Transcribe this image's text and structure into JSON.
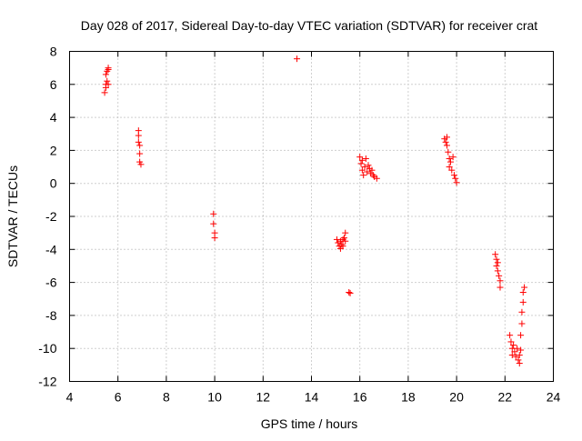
{
  "chart_data": {
    "type": "scatter",
    "title": "Day 028 of 2017, Sidereal Day-to-day VTEC variation (SDTVAR) for receiver crat",
    "xlabel": "GPS time / hours",
    "ylabel": "SDTVAR / TECUs",
    "xlim": [
      4,
      24
    ],
    "ylim": [
      -12,
      8
    ],
    "x_ticks": [
      4,
      6,
      8,
      10,
      12,
      14,
      16,
      18,
      20,
      22,
      24
    ],
    "y_ticks": [
      -12,
      -10,
      -8,
      -6,
      -4,
      -2,
      0,
      2,
      4,
      6,
      8
    ],
    "grid": true,
    "marker": "+",
    "color": "#ff0000",
    "series": [
      {
        "name": "SDTVAR",
        "points": [
          [
            5.45,
            5.5
          ],
          [
            5.5,
            5.8
          ],
          [
            5.5,
            6.0
          ],
          [
            5.55,
            6.2
          ],
          [
            5.6,
            6.0
          ],
          [
            5.5,
            6.6
          ],
          [
            5.55,
            6.8
          ],
          [
            5.6,
            6.9
          ],
          [
            5.6,
            7.0
          ],
          [
            6.85,
            3.2
          ],
          [
            6.85,
            2.9
          ],
          [
            6.85,
            2.5
          ],
          [
            6.9,
            2.3
          ],
          [
            6.9,
            1.8
          ],
          [
            6.9,
            1.3
          ],
          [
            6.95,
            1.15
          ],
          [
            9.95,
            -1.85
          ],
          [
            9.95,
            -2.45
          ],
          [
            10.0,
            -3.0
          ],
          [
            10.0,
            -3.3
          ],
          [
            13.4,
            7.55
          ],
          [
            15.05,
            -3.4
          ],
          [
            15.1,
            -3.6
          ],
          [
            15.15,
            -3.8
          ],
          [
            15.2,
            -3.95
          ],
          [
            15.2,
            -3.5
          ],
          [
            15.25,
            -3.7
          ],
          [
            15.3,
            -3.4
          ],
          [
            15.3,
            -3.8
          ],
          [
            15.35,
            -3.3
          ],
          [
            15.4,
            -3.0
          ],
          [
            15.4,
            -3.5
          ],
          [
            15.55,
            -6.6
          ],
          [
            15.6,
            -6.65
          ],
          [
            16.0,
            1.6
          ],
          [
            16.05,
            1.2
          ],
          [
            16.1,
            0.8
          ],
          [
            16.1,
            1.4
          ],
          [
            16.15,
            0.5
          ],
          [
            16.2,
            1.0
          ],
          [
            16.25,
            1.5
          ],
          [
            16.3,
            0.7
          ],
          [
            16.35,
            1.1
          ],
          [
            16.4,
            0.9
          ],
          [
            16.45,
            0.6
          ],
          [
            16.5,
            0.8
          ],
          [
            16.55,
            0.5
          ],
          [
            16.6,
            0.4
          ],
          [
            16.7,
            0.3
          ],
          [
            19.5,
            2.7
          ],
          [
            19.55,
            2.5
          ],
          [
            19.6,
            2.3
          ],
          [
            19.6,
            2.8
          ],
          [
            19.65,
            1.9
          ],
          [
            19.7,
            1.5
          ],
          [
            19.7,
            1.0
          ],
          [
            19.75,
            1.3
          ],
          [
            19.8,
            0.8
          ],
          [
            19.85,
            1.6
          ],
          [
            19.9,
            0.5
          ],
          [
            19.95,
            0.3
          ],
          [
            20.0,
            0.05
          ],
          [
            21.6,
            -4.3
          ],
          [
            21.65,
            -4.6
          ],
          [
            21.65,
            -5.0
          ],
          [
            21.7,
            -4.8
          ],
          [
            21.7,
            -5.3
          ],
          [
            21.75,
            -5.6
          ],
          [
            21.8,
            -5.9
          ],
          [
            21.8,
            -6.3
          ],
          [
            22.2,
            -9.2
          ],
          [
            22.25,
            -9.6
          ],
          [
            22.3,
            -10.0
          ],
          [
            22.3,
            -10.4
          ],
          [
            22.35,
            -9.8
          ],
          [
            22.4,
            -10.2
          ],
          [
            22.45,
            -10.5
          ],
          [
            22.5,
            -10.0
          ],
          [
            22.55,
            -10.7
          ],
          [
            22.6,
            -10.4
          ],
          [
            22.6,
            -10.9
          ],
          [
            22.65,
            -10.1
          ],
          [
            22.65,
            -9.2
          ],
          [
            22.7,
            -8.5
          ],
          [
            22.7,
            -7.8
          ],
          [
            22.75,
            -7.2
          ],
          [
            22.75,
            -6.6
          ],
          [
            22.8,
            -6.3
          ]
        ]
      }
    ]
  }
}
